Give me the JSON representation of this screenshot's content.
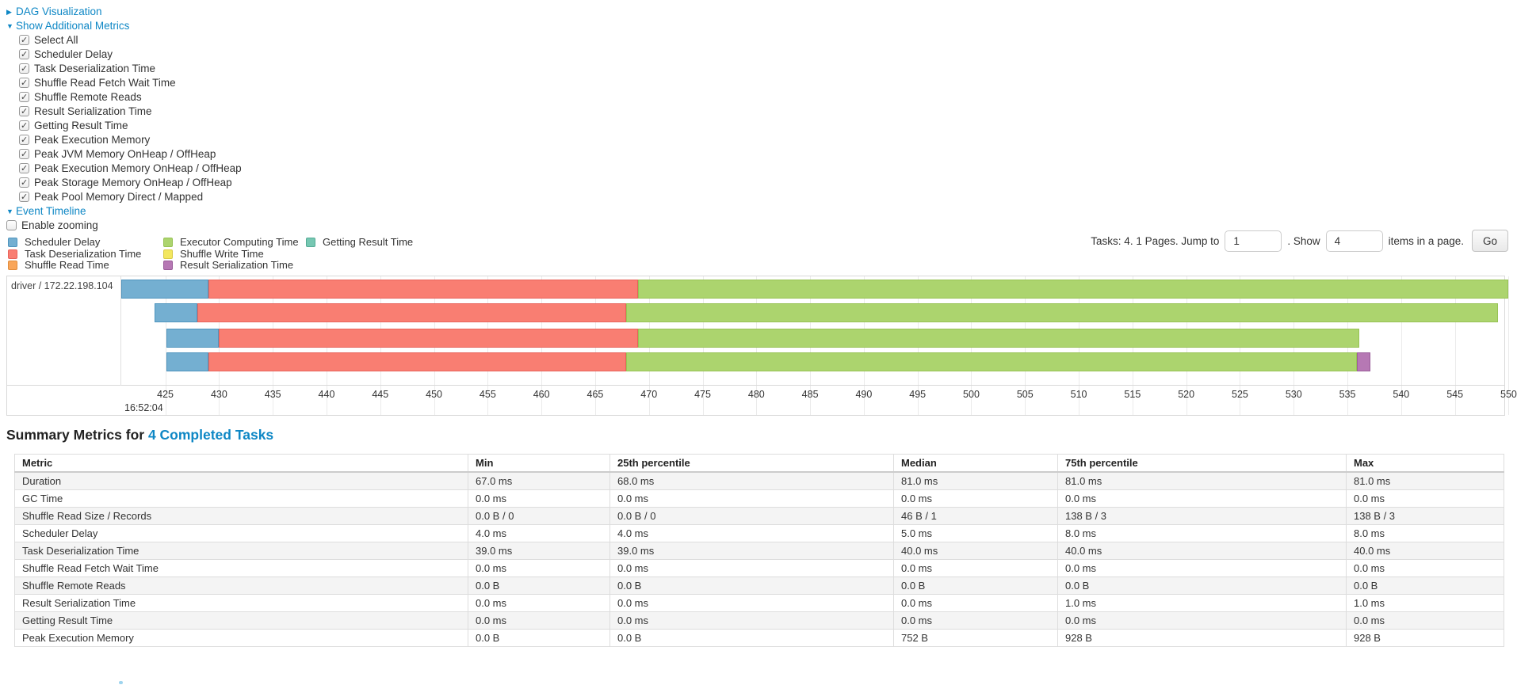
{
  "controls": {
    "dag_section": {
      "label": "DAG Visualization",
      "state": "collapsed"
    },
    "metrics_section": {
      "label": "Show Additional Metrics",
      "state": "expanded"
    },
    "metrics_checkboxes": [
      "Select All",
      "Scheduler Delay",
      "Task Deserialization Time",
      "Shuffle Read Fetch Wait Time",
      "Shuffle Remote Reads",
      "Result Serialization Time",
      "Getting Result Time",
      "Peak Execution Memory",
      "Peak JVM Memory OnHeap / OffHeap",
      "Peak Execution Memory OnHeap / OffHeap",
      "Peak Storage Memory OnHeap / OffHeap",
      "Peak Pool Memory Direct / Mapped"
    ],
    "timeline_section": {
      "label": "Event Timeline",
      "state": "expanded"
    },
    "enable_zooming": {
      "label": "Enable zooming",
      "checked": false
    }
  },
  "pagination": {
    "text_before": "Tasks: 4. 1 Pages. Jump to",
    "jump_value": "1",
    "text_mid": ". Show",
    "show_value": "4",
    "text_after": "items in a page.",
    "go_label": "Go"
  },
  "legend": {
    "columns": [
      [
        {
          "label": "Scheduler Delay",
          "type": "scheduler_delay"
        },
        {
          "label": "Task Deserialization Time",
          "type": "deserialization"
        },
        {
          "label": "Shuffle Read Time",
          "type": "shuffle_read"
        }
      ],
      [
        {
          "label": "Executor Computing Time",
          "type": "executor_computing"
        },
        {
          "label": "Shuffle Write Time",
          "type": "shuffle_write"
        },
        {
          "label": "Result Serialization Time",
          "type": "result_serialization"
        }
      ],
      [
        {
          "label": "Getting Result Time",
          "type": "getting_result"
        }
      ]
    ]
  },
  "chart_data": {
    "type": "timeline",
    "group_label": "driver / 172.22.198.104",
    "start_time_label": "16:52:04",
    "axis": {
      "min": 420.9,
      "max": 549.6,
      "ticks": [
        425,
        430,
        435,
        440,
        445,
        450,
        455,
        460,
        465,
        470,
        475,
        480,
        485,
        490,
        495,
        500,
        505,
        510,
        515,
        520,
        525,
        530,
        535,
        540,
        545,
        550
      ]
    },
    "colors": {
      "scheduler_delay": {
        "fill": "#74AFD1",
        "border": "#4E94BE"
      },
      "deserialization": {
        "fill": "#F97E72",
        "border": "#E8635B"
      },
      "shuffle_read": {
        "fill": "#F9A65A",
        "border": "#E08C3C"
      },
      "executor_computing": {
        "fill": "#ACD46E",
        "border": "#97C254"
      },
      "shuffle_write": {
        "fill": "#F3E75F",
        "border": "#D9CB45"
      },
      "result_serialization": {
        "fill": "#B678B4",
        "border": "#995B99"
      },
      "getting_result": {
        "fill": "#76C7B2",
        "border": "#54AB95"
      }
    },
    "tasks": [
      {
        "segments": [
          {
            "type": "scheduler_delay",
            "start": 420.9,
            "end": 429.0
          },
          {
            "type": "deserialization",
            "start": 429.0,
            "end": 469.0
          },
          {
            "type": "executor_computing",
            "start": 469.0,
            "end": 550.0
          }
        ]
      },
      {
        "segments": [
          {
            "type": "scheduler_delay",
            "start": 424.0,
            "end": 428.0
          },
          {
            "type": "deserialization",
            "start": 428.0,
            "end": 467.9
          },
          {
            "type": "executor_computing",
            "start": 467.9,
            "end": 549.0
          }
        ]
      },
      {
        "segments": [
          {
            "type": "scheduler_delay",
            "start": 425.1,
            "end": 430.0
          },
          {
            "type": "deserialization",
            "start": 430.0,
            "end": 469.0
          },
          {
            "type": "executor_computing",
            "start": 469.0,
            "end": 536.1
          }
        ]
      },
      {
        "segments": [
          {
            "type": "scheduler_delay",
            "start": 425.1,
            "end": 429.0
          },
          {
            "type": "deserialization",
            "start": 429.0,
            "end": 467.9
          },
          {
            "type": "executor_computing",
            "start": 467.9,
            "end": 535.9
          },
          {
            "type": "result_serialization",
            "start": 535.9,
            "end": 537.1
          }
        ]
      }
    ]
  },
  "summary": {
    "title_prefix": "Summary Metrics for ",
    "title_link": "4 Completed Tasks",
    "table": {
      "headers": [
        "Metric",
        "Min",
        "25th percentile",
        "Median",
        "75th percentile",
        "Max"
      ],
      "rows": [
        {
          "metric": "Duration",
          "values": [
            "67.0 ms",
            "68.0 ms",
            "81.0 ms",
            "81.0 ms",
            "81.0 ms"
          ]
        },
        {
          "metric": "GC Time",
          "values": [
            "0.0 ms",
            "0.0 ms",
            "0.0 ms",
            "0.0 ms",
            "0.0 ms"
          ]
        },
        {
          "metric": "Shuffle Read Size / Records",
          "values": [
            "0.0 B / 0",
            "0.0 B / 0",
            "46 B / 1",
            "138 B / 3",
            "138 B / 3"
          ]
        },
        {
          "metric": "Scheduler Delay",
          "values": [
            "4.0 ms",
            "4.0 ms",
            "5.0 ms",
            "8.0 ms",
            "8.0 ms"
          ]
        },
        {
          "metric": "Task Deserialization Time",
          "values": [
            "39.0 ms",
            "39.0 ms",
            "40.0 ms",
            "40.0 ms",
            "40.0 ms"
          ]
        },
        {
          "metric": "Shuffle Read Fetch Wait Time",
          "values": [
            "0.0 ms",
            "0.0 ms",
            "0.0 ms",
            "0.0 ms",
            "0.0 ms"
          ]
        },
        {
          "metric": "Shuffle Remote Reads",
          "values": [
            "0.0 B",
            "0.0 B",
            "0.0 B",
            "0.0 B",
            "0.0 B"
          ]
        },
        {
          "metric": "Result Serialization Time",
          "values": [
            "0.0 ms",
            "0.0 ms",
            "0.0 ms",
            "1.0 ms",
            "1.0 ms"
          ]
        },
        {
          "metric": "Getting Result Time",
          "values": [
            "0.0 ms",
            "0.0 ms",
            "0.0 ms",
            "0.0 ms",
            "0.0 ms"
          ]
        },
        {
          "metric": "Peak Execution Memory",
          "values": [
            "0.0 B",
            "0.0 B",
            "752 B",
            "928 B",
            "928 B"
          ]
        }
      ]
    }
  }
}
